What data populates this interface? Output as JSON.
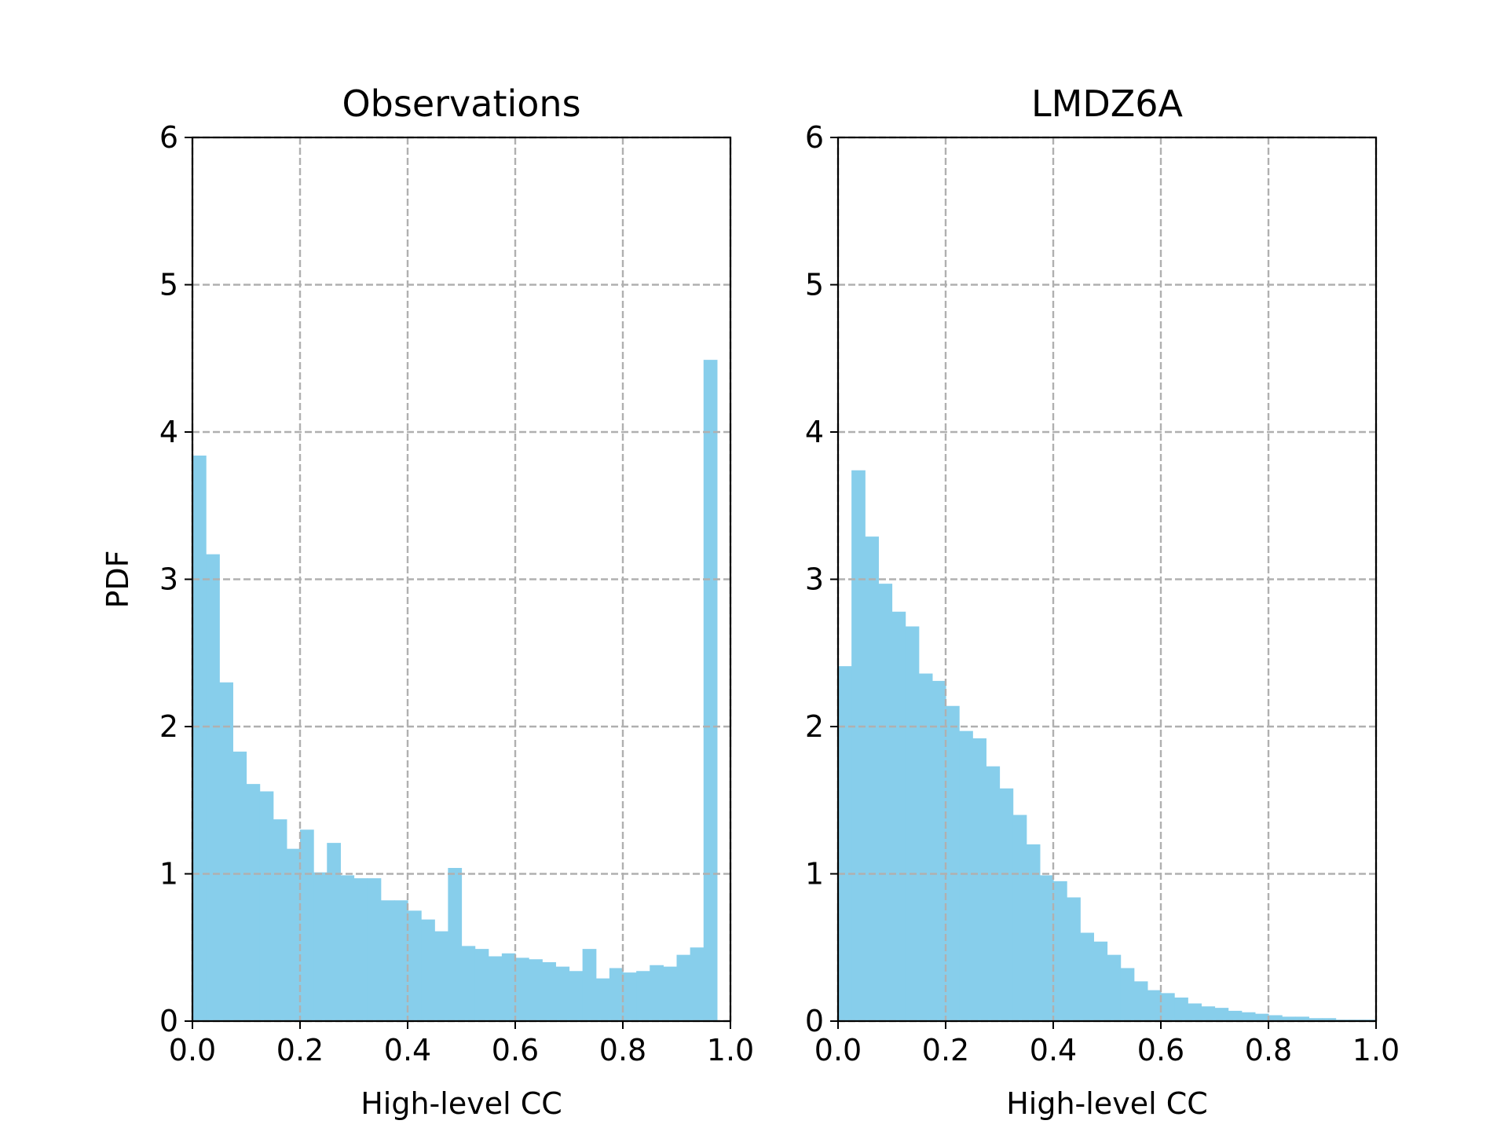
{
  "chart_data": [
    {
      "type": "bar",
      "title": "Observations",
      "xlabel": "High-level CC",
      "ylabel": "PDF",
      "xlim": [
        0,
        1
      ],
      "ylim": [
        0,
        6
      ],
      "grid": true,
      "bar_color": "#87ceeb",
      "grid_color": "#b0b0b0",
      "bin_width": 0.025,
      "x_ticks": [
        "0.0",
        "0.2",
        "0.4",
        "0.6",
        "0.8",
        "1.0"
      ],
      "y_ticks": [
        "0",
        "1",
        "2",
        "3",
        "4",
        "5",
        "6"
      ],
      "bin_start": [
        0.0,
        0.025,
        0.05,
        0.075,
        0.1,
        0.125,
        0.15,
        0.175,
        0.2,
        0.225,
        0.25,
        0.275,
        0.3,
        0.325,
        0.35,
        0.375,
        0.4,
        0.425,
        0.45,
        0.475,
        0.5,
        0.525,
        0.55,
        0.575,
        0.6,
        0.625,
        0.65,
        0.675,
        0.7,
        0.725,
        0.75,
        0.775,
        0.8,
        0.825,
        0.85,
        0.875,
        0.9,
        0.925,
        0.95,
        0.975
      ],
      "values": [
        3.84,
        3.17,
        2.3,
        1.83,
        1.61,
        1.56,
        1.37,
        1.17,
        1.3,
        1.01,
        1.21,
        0.99,
        0.97,
        0.97,
        0.82,
        0.82,
        0.75,
        0.69,
        0.61,
        1.04,
        0.51,
        0.49,
        0.44,
        0.46,
        0.43,
        0.42,
        0.4,
        0.37,
        0.34,
        0.49,
        0.29,
        0.36,
        0.33,
        0.34,
        0.38,
        0.37,
        0.45,
        0.5,
        4.49,
        0
      ]
    },
    {
      "type": "bar",
      "title": "LMDZ6A",
      "xlabel": "High-level CC",
      "ylabel": "",
      "xlim": [
        0,
        1
      ],
      "ylim": [
        0,
        6
      ],
      "grid": true,
      "bar_color": "#87ceeb",
      "grid_color": "#b0b0b0",
      "bin_width": 0.025,
      "x_ticks": [
        "0.0",
        "0.2",
        "0.4",
        "0.6",
        "0.8",
        "1.0"
      ],
      "y_ticks": [
        "0",
        "1",
        "2",
        "3",
        "4",
        "5",
        "6"
      ],
      "bin_start": [
        0.0,
        0.025,
        0.05,
        0.075,
        0.1,
        0.125,
        0.15,
        0.175,
        0.2,
        0.225,
        0.25,
        0.275,
        0.3,
        0.325,
        0.35,
        0.375,
        0.4,
        0.425,
        0.45,
        0.475,
        0.5,
        0.525,
        0.55,
        0.575,
        0.6,
        0.625,
        0.65,
        0.675,
        0.7,
        0.725,
        0.75,
        0.775,
        0.8,
        0.825,
        0.85,
        0.875,
        0.9,
        0.925,
        0.95,
        0.975
      ],
      "values": [
        2.41,
        3.74,
        3.29,
        2.97,
        2.78,
        2.68,
        2.36,
        2.31,
        2.14,
        1.97,
        1.92,
        1.73,
        1.58,
        1.4,
        1.2,
        0.99,
        0.95,
        0.84,
        0.6,
        0.54,
        0.45,
        0.36,
        0.27,
        0.21,
        0.19,
        0.16,
        0.12,
        0.1,
        0.09,
        0.07,
        0.06,
        0.05,
        0.04,
        0.03,
        0.03,
        0.02,
        0.02,
        0.01,
        0.01,
        0.01
      ]
    }
  ]
}
